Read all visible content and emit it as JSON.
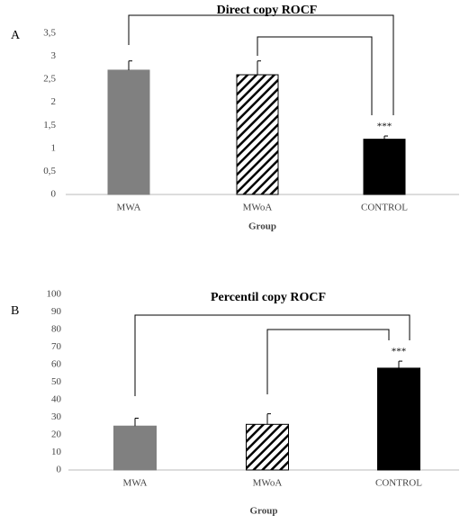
{
  "chart_data": [
    {
      "type": "bar",
      "panel": "A",
      "title": "Direct copy ROCF",
      "x_label": "Group",
      "categories": [
        "MWA",
        "MWoA",
        "CONTROL"
      ],
      "values": [
        2.7,
        2.6,
        1.2
      ],
      "errors": [
        0.2,
        0.3,
        0.07
      ],
      "colors": [
        "#808080",
        "#000000",
        "#000000"
      ],
      "hatched": [
        false,
        true,
        false
      ],
      "annotations": [
        {
          "category": 2,
          "text": "***"
        }
      ],
      "ylim": [
        0,
        3.5
      ],
      "yticks": [
        0,
        {
          "value": 0.5,
          "label": "0,5"
        },
        1,
        {
          "value": 1.5,
          "label": "1,5"
        },
        2,
        {
          "value": 2.5,
          "label": "2,5"
        },
        3,
        {
          "value": 3.5,
          "label": "3,5"
        }
      ]
    },
    {
      "type": "bar",
      "panel": "B",
      "title": "Percentil copy ROCF",
      "x_label": "Group",
      "categories": [
        "MWA",
        "MWoA",
        "CONTROL"
      ],
      "values": [
        25,
        26,
        58
      ],
      "errors": [
        4.5,
        6,
        4
      ],
      "colors": [
        "#808080",
        "#000000",
        "#000000"
      ],
      "hatched": [
        false,
        true,
        false
      ],
      "annotations": [
        {
          "category": 2,
          "text": "***"
        }
      ],
      "ylim": [
        0,
        100
      ],
      "yticks": [
        0,
        10,
        20,
        30,
        40,
        50,
        60,
        70,
        80,
        90,
        100
      ]
    }
  ]
}
